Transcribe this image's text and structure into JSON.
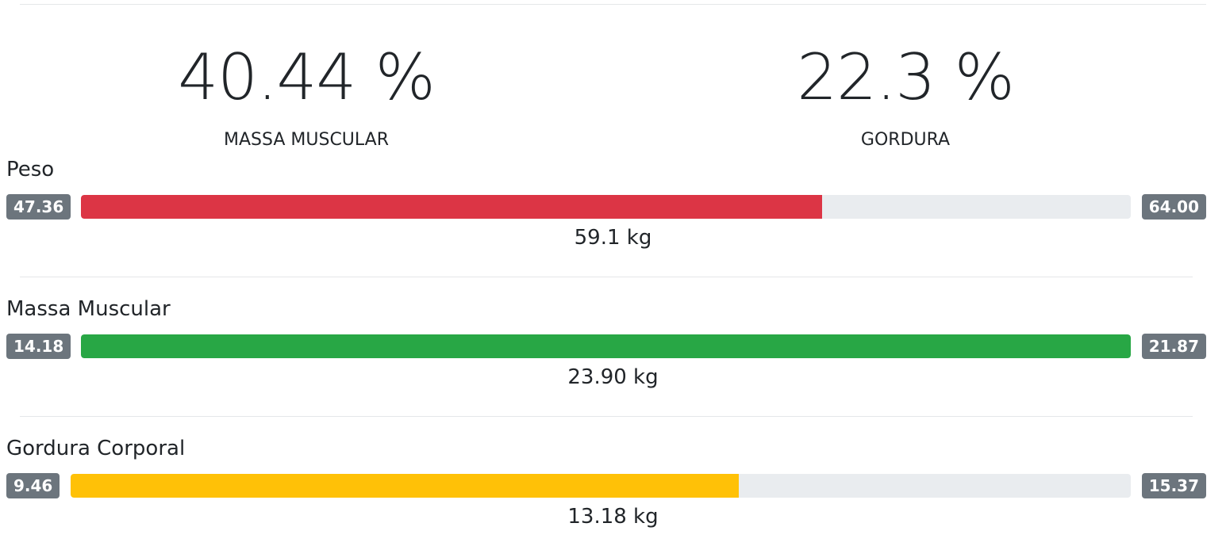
{
  "summary": {
    "muscle_mass_percent": "40.44 %",
    "muscle_mass_label": "MASSA MUSCULAR",
    "fat_percent": "22.3 %",
    "fat_label": "GORDURA"
  },
  "metrics": [
    {
      "title": "Peso",
      "min": "47.36",
      "max": "64.00",
      "value": "59.1 kg",
      "fill_fraction": 0.706,
      "color": "#dc3545"
    },
    {
      "title": "Massa Muscular",
      "min": "14.18",
      "max": "21.87",
      "value": "23.90 kg",
      "fill_fraction": 1.0,
      "color": "#28a745"
    },
    {
      "title": "Gordura Corporal",
      "min": "9.46",
      "max": "15.37",
      "value": "13.18 kg",
      "fill_fraction": 0.63,
      "color": "#ffc107"
    }
  ]
}
